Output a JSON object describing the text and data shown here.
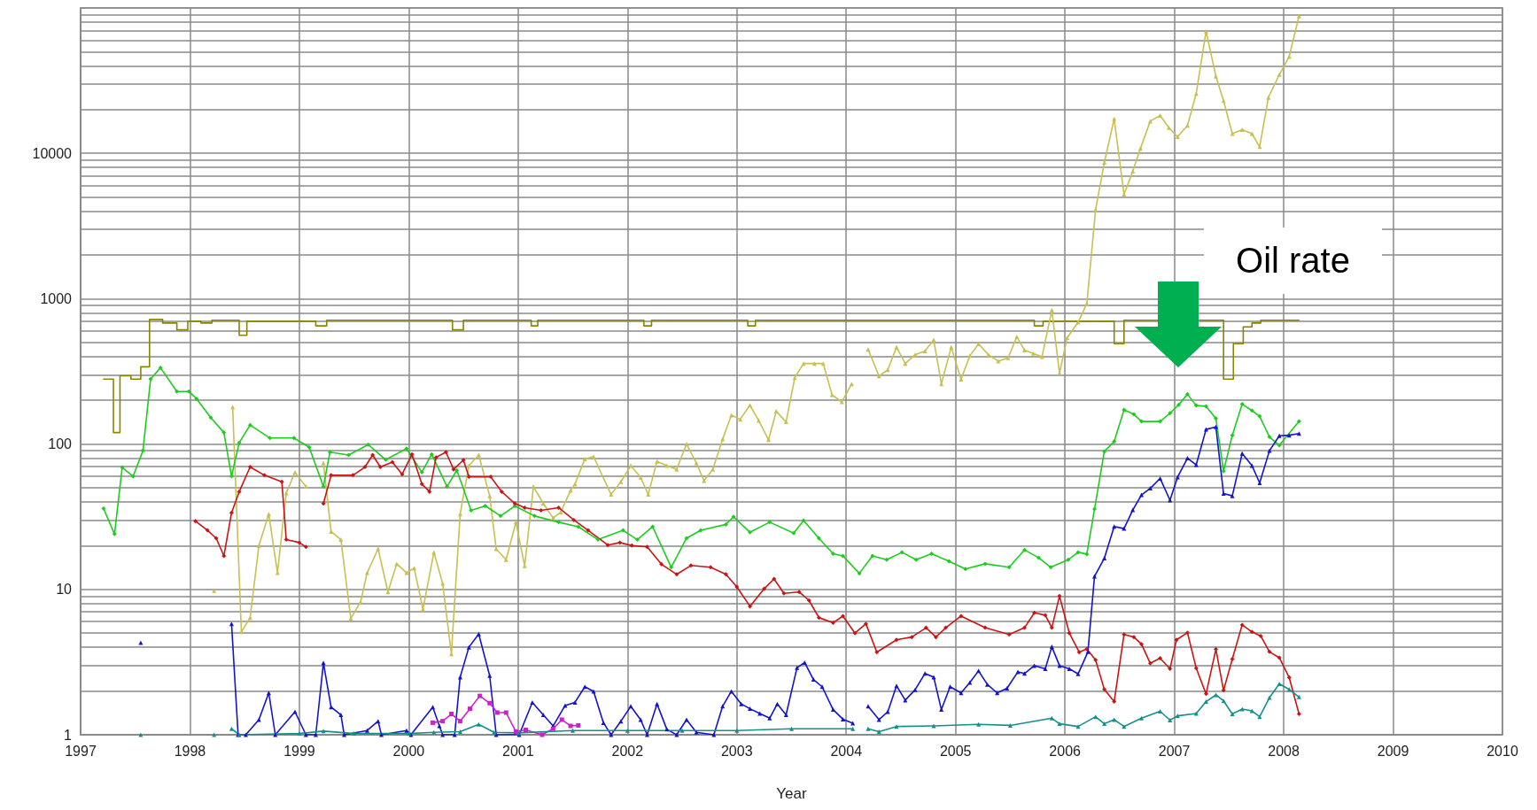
{
  "chart_data": {
    "type": "line",
    "xlabel": "Year",
    "xlim": [
      1997,
      2010
    ],
    "xticks": [
      1997,
      1998,
      1999,
      2000,
      2001,
      2002,
      2003,
      2004,
      2005,
      2006,
      2007,
      2008,
      2009,
      2010
    ],
    "ylim": [
      1,
      100000
    ],
    "log": "y",
    "grid": true,
    "yticks": [
      1,
      {
        "value": 2,
        "label": null
      },
      {
        "value": 3,
        "label": null
      },
      {
        "value": 4,
        "label": null
      },
      {
        "value": 5,
        "label": null
      },
      {
        "value": 6,
        "label": null
      },
      {
        "value": 7,
        "label": null
      },
      {
        "value": 8,
        "label": null
      },
      {
        "value": 9,
        "label": null
      },
      10,
      {
        "value": 20,
        "label": null
      },
      {
        "value": 30,
        "label": null
      },
      {
        "value": 40,
        "label": null
      },
      {
        "value": 50,
        "label": null
      },
      {
        "value": 60,
        "label": null
      },
      {
        "value": 70,
        "label": null
      },
      {
        "value": 80,
        "label": null
      },
      {
        "value": 90,
        "label": null
      },
      100,
      {
        "value": 200,
        "label": null
      },
      {
        "value": 300,
        "label": null
      },
      {
        "value": 400,
        "label": null
      },
      {
        "value": 500,
        "label": null
      },
      {
        "value": 600,
        "label": null
      },
      {
        "value": 700,
        "label": null
      },
      {
        "value": 800,
        "label": null
      },
      {
        "value": 900,
        "label": null
      },
      1000,
      {
        "value": 2000,
        "label": null
      },
      {
        "value": 3000,
        "label": null
      },
      {
        "value": 4000,
        "label": null
      },
      {
        "value": 5000,
        "label": null
      },
      {
        "value": 6000,
        "label": null
      },
      {
        "value": 7000,
        "label": null
      },
      {
        "value": 8000,
        "label": null
      },
      {
        "value": 9000,
        "label": null
      },
      10000,
      {
        "value": 20000,
        "label": null
      },
      {
        "value": 30000,
        "label": null
      },
      {
        "value": 40000,
        "label": null
      },
      {
        "value": 50000,
        "label": null
      },
      {
        "value": 60000,
        "label": null
      },
      {
        "value": 70000,
        "label": null
      },
      {
        "value": 80000,
        "label": null
      },
      {
        "value": 90000,
        "label": null
      },
      {
        "value": 100000,
        "label": null
      }
    ],
    "annotations": [
      "Oil rate"
    ],
    "series": [
      {
        "type": "step",
        "color": "#8c8400",
        "marker": "none",
        "x": [
          1997.21,
          1997.3,
          1997.36,
          1997.46,
          1997.55,
          1997.63,
          1997.75,
          1997.88,
          1997.98,
          1998.1,
          1998.2,
          1998.45,
          1998.52,
          1999.15,
          1999.25,
          2000.4,
          2000.5,
          2001.12,
          2001.18,
          2002.15,
          2002.22,
          2003.1,
          2003.17,
          2005.72,
          2005.8,
          2006.45,
          2006.54,
          2007.45,
          2007.54,
          2007.63,
          2007.71,
          2007.79,
          2008.14
        ],
        "values": [
          280,
          120,
          295,
          280,
          340,
          720,
          680,
          610,
          700,
          680,
          710,
          560,
          700,
          650,
          710,
          610,
          710,
          650,
          710,
          650,
          710,
          650,
          710,
          650,
          700,
          490,
          710,
          280,
          490,
          640,
          680,
          710,
          710
        ]
      },
      {
        "color": "#c8c050",
        "marker": "triangle",
        "x": [
          1998.22,
          1998.3,
          1998.39,
          1998.47,
          1998.55,
          1998.63,
          1998.72,
          1998.8,
          1998.88,
          1998.96,
          1999.06,
          1999.14,
          1999.22,
          1999.29,
          1999.38,
          1999.47,
          1999.56,
          1999.62,
          1999.72,
          1999.81,
          1999.89,
          1999.98,
          2000.05,
          2000.13,
          2000.23,
          2000.31,
          2000.39,
          2000.47,
          2000.55,
          2000.64,
          2000.74,
          2000.8,
          2000.89,
          2000.98,
          2001.06,
          2001.14,
          2001.23,
          2001.32,
          2001.39,
          2001.48,
          2001.52,
          2001.61,
          2001.69,
          2001.85,
          2001.94,
          2002.03,
          2002.12,
          2002.19,
          2002.27,
          2002.36,
          2002.45,
          2002.54,
          2002.63,
          2002.7,
          2002.78,
          2002.87,
          2002.95,
          2003.03,
          2003.12,
          2003.2,
          2003.29,
          2003.36,
          2003.45,
          2003.53,
          2003.61,
          2003.71,
          2003.79,
          2003.87,
          2003.96,
          2004.05,
          2004.12,
          2004.2,
          2004.3,
          2004.38,
          2004.46,
          2004.54,
          2004.63,
          2004.72,
          2004.8,
          2004.87,
          2004.96,
          2005.05,
          2005.13,
          2005.21,
          2005.3,
          2005.39,
          2005.48,
          2005.56,
          2005.63,
          2005.71,
          2005.79,
          2005.88,
          2005.95,
          2006.02,
          2006.12,
          2006.2,
          2006.28,
          2006.36,
          2006.45,
          2006.54,
          2006.62,
          2006.69,
          2006.78,
          2006.87,
          2006.95,
          2007.03,
          2007.12,
          2007.2,
          2007.29,
          2007.38,
          2007.45,
          2007.53,
          2007.62,
          2007.71,
          2007.78,
          2007.86,
          2007.96,
          2008.05,
          2008.14
        ],
        "values": [
          9.8,
          null,
          180,
          5.1,
          6.4,
          20,
          33,
          13,
          46,
          64,
          51,
          null,
          74,
          25,
          22,
          6.3,
          8.2,
          13,
          19,
          9.6,
          15,
          13,
          14,
          7.3,
          18,
          11,
          3.6,
          33,
          71,
          84,
          44,
          19,
          16,
          29,
          14.5,
          51,
          39,
          31,
          34,
          48,
          53,
          79,
          82,
          45,
          55,
          71,
          59,
          45,
          76,
          71,
          67,
          100,
          74,
          56,
          67,
          108,
          158,
          148,
          185,
          145,
          107,
          168,
          142,
          286,
          358,
          358,
          358,
          218,
          195,
          259,
          null,
          448,
          294,
          324,
          464,
          358,
          412,
          437,
          520,
          259,
          464,
          279,
          405,
          488,
          412,
          372,
          392,
          547,
          442,
          420,
          398,
          834,
          307,
          539,
          688,
          925,
          4090,
          8650,
          17260,
          5220,
          7510,
          10800,
          16640,
          18200,
          15000,
          13000,
          15560,
          25760,
          69200,
          33900,
          23000,
          13650,
          14550,
          13650,
          11090,
          24200,
          34800,
          46300,
          87900
        ]
      },
      {
        "color": "#1ecc1e",
        "marker": "diamond",
        "x": [
          1997.21,
          1997.31,
          1997.38,
          1997.48,
          1997.57,
          1997.64,
          1997.73,
          1997.88,
          1997.99,
          1998.06,
          1998.19,
          1998.31,
          1998.38,
          1998.45,
          1998.55,
          1998.73,
          1998.95,
          1999.09,
          1999.22,
          1999.28,
          1999.45,
          1999.63,
          1999.79,
          1999.98,
          2000.12,
          2000.21,
          2000.35,
          2000.44,
          2000.57,
          2000.7,
          2000.84,
          2000.97,
          2001.15,
          2001.37,
          2001.55,
          2001.73,
          2001.96,
          2002.09,
          2002.23,
          2002.4,
          2002.54,
          2002.67,
          2002.9,
          2002.97,
          2003.12,
          2003.3,
          2003.52,
          2003.61,
          2003.75,
          2003.88,
          2003.97,
          2004.12,
          2004.24,
          2004.37,
          2004.51,
          2004.64,
          2004.78,
          2004.94,
          2005.09,
          2005.27,
          2005.49,
          2005.63,
          2005.76,
          2005.87,
          2006.03,
          2006.12,
          2006.2,
          2006.27,
          2006.36,
          2006.45,
          2006.54,
          2006.63,
          2006.7,
          2006.87,
          2006.96,
          2007.04,
          2007.12,
          2007.2,
          2007.29,
          2007.38,
          2007.45,
          2007.53,
          2007.62,
          2007.71,
          2007.78,
          2007.87,
          2007.96,
          2008.14
        ],
        "values": [
          36,
          24,
          69,
          60,
          90,
          280,
          335,
          230,
          230,
          205,
          152,
          120,
          60,
          102,
          135,
          110,
          110,
          95,
          51,
          88,
          84,
          99,
          78,
          93,
          64,
          85,
          51,
          66,
          35,
          37.5,
          32,
          37.5,
          32,
          29,
          27,
          22,
          25.5,
          22,
          27,
          14.2,
          22.5,
          25.5,
          28,
          31.6,
          24.7,
          29,
          24.4,
          29.8,
          22.5,
          17.6,
          17,
          12.9,
          17,
          16,
          18,
          16,
          17.6,
          15.6,
          13.8,
          15,
          14.2,
          18.7,
          16.5,
          14.2,
          16,
          18,
          17.5,
          35.7,
          89,
          104,
          172,
          160,
          143,
          143,
          163,
          186,
          220,
          184,
          182,
          150,
          65,
          115,
          188,
          170,
          155,
          112,
          98,
          143
        ]
      },
      {
        "color": "#cc1414",
        "marker": "diamond",
        "x": [
          1998.05,
          1998.16,
          1998.24,
          1998.31,
          1998.38,
          1998.45,
          1998.55,
          1998.68,
          1998.84,
          1998.88,
          1999.0,
          1999.06,
          1999.14,
          1999.22,
          1999.29,
          1999.49,
          1999.6,
          1999.67,
          1999.74,
          1999.85,
          1999.94,
          2000.03,
          2000.12,
          2000.19,
          2000.25,
          2000.34,
          2000.41,
          2000.5,
          2000.55,
          2000.75,
          2000.85,
          2000.97,
          2001.06,
          2001.21,
          2001.37,
          2001.51,
          2001.64,
          2001.82,
          2001.93,
          2002.04,
          2002.18,
          2002.31,
          2002.45,
          2002.58,
          2002.76,
          2002.9,
          2003.0,
          2003.12,
          2003.25,
          2003.34,
          2003.43,
          2003.57,
          2003.66,
          2003.75,
          2003.88,
          2003.97,
          2004.08,
          2004.18,
          2004.28,
          2004.46,
          2004.6,
          2004.73,
          2004.82,
          2004.91,
          2005.05,
          2005.27,
          2005.49,
          2005.63,
          2005.72,
          2005.82,
          2005.88,
          2005.95,
          2006.04,
          2006.13,
          2006.2,
          2006.28,
          2006.36,
          2006.45,
          2006.54,
          2006.63,
          2006.7,
          2006.78,
          2006.87,
          2006.96,
          2007.02,
          2007.12,
          2007.2,
          2007.29,
          2007.38,
          2007.45,
          2007.53,
          2007.62,
          2007.71,
          2007.79,
          2007.87,
          2007.96,
          2008.05,
          2008.14
        ],
        "values": [
          29.5,
          25.5,
          22.5,
          17,
          33.7,
          47,
          69.5,
          61,
          55,
          22,
          21,
          19.6,
          null,
          39,
          61,
          61,
          69.5,
          84,
          69.5,
          75,
          62,
          85,
          53,
          47,
          81,
          88,
          67,
          77.5,
          59.5,
          59.5,
          47,
          39,
          36.5,
          35,
          36.5,
          30,
          25.5,
          20.2,
          21,
          20,
          19.6,
          14.9,
          12.7,
          14.6,
          14.2,
          12.7,
          10.4,
          7.65,
          10.1,
          11.8,
          9.4,
          9.6,
          8.4,
          6.4,
          5.9,
          6.55,
          5.0,
          5.8,
          3.7,
          4.5,
          4.7,
          5.45,
          4.7,
          5.45,
          6.55,
          5.45,
          4.9,
          5.45,
          6.9,
          6.65,
          5.45,
          9.0,
          5.0,
          3.7,
          3.9,
          3.27,
          2.05,
          1.69,
          4.9,
          4.7,
          4.2,
          3.1,
          3.36,
          2.84,
          4.5,
          5.04,
          2.87,
          1.91,
          3.88,
          2.02,
          3.32,
          5.7,
          5.1,
          4.78,
          3.72,
          3.39,
          2.48,
          1.39
        ]
      },
      {
        "color": "#1414cc",
        "marker": "triangle",
        "x": [
          1997.55,
          1997.9,
          1998.38,
          1998.44,
          1998.51,
          1998.63,
          1998.72,
          1998.78,
          1998.96,
          1999.06,
          1999.15,
          1999.22,
          1999.29,
          1999.38,
          1999.41,
          1999.62,
          1999.72,
          1999.75,
          1999.98,
          2000.02,
          2000.22,
          2000.28,
          2000.31,
          2000.42,
          2000.47,
          2000.55,
          2000.64,
          2000.74,
          2000.8,
          2001.01,
          2001.13,
          2001.23,
          2001.32,
          2001.43,
          2001.52,
          2001.61,
          2001.69,
          2001.78,
          2001.85,
          2001.94,
          2002.03,
          2002.12,
          2002.18,
          2002.27,
          2002.36,
          2002.45,
          2002.54,
          2002.63,
          2002.79,
          2002.87,
          2002.95,
          2003.04,
          2003.12,
          2003.21,
          2003.3,
          2003.37,
          2003.45,
          2003.55,
          2003.62,
          2003.7,
          2003.78,
          2003.88,
          2003.97,
          2004.06,
          2004.13,
          2004.2,
          2004.3,
          2004.38,
          2004.46,
          2004.54,
          2004.63,
          2004.72,
          2004.8,
          2004.87,
          2004.95,
          2005.05,
          2005.13,
          2005.21,
          2005.29,
          2005.38,
          2005.47,
          2005.57,
          2005.63,
          2005.72,
          2005.82,
          2005.88,
          2005.95,
          2006.04,
          2006.12,
          2006.21,
          2006.27,
          2006.36,
          2006.45,
          2006.54,
          2006.62,
          2006.7,
          2006.78,
          2006.87,
          2006.96,
          2007.03,
          2007.12,
          2007.2,
          2007.29,
          2007.38,
          2007.45,
          2007.53,
          2007.62,
          2007.71,
          2007.78,
          2007.87,
          2007.96,
          2008.05,
          2008.14
        ],
        "values": [
          4.3,
          null,
          5.8,
          1,
          1,
          1.27,
          1.94,
          1,
          1.44,
          1,
          1,
          3.12,
          1.55,
          1.37,
          1,
          1.07,
          1.24,
          1,
          1.07,
          1,
          1.55,
          1.15,
          1,
          1,
          2.49,
          4.0,
          4.93,
          2.55,
          1,
          1,
          1.67,
          1.37,
          1.15,
          1.59,
          1.67,
          2.14,
          1.99,
          1.21,
          1,
          1.24,
          1.57,
          1.27,
          1,
          1.63,
          1.09,
          1,
          1.27,
          1.04,
          1,
          1.57,
          1.99,
          1.63,
          1.51,
          1.4,
          1.3,
          1.63,
          1.37,
          2.89,
          3.14,
          2.4,
          2.14,
          1.49,
          1.28,
          1.2,
          null,
          1.57,
          1.27,
          1.44,
          2.17,
          1.73,
          2.04,
          2.64,
          2.49,
          1.49,
          2.14,
          1.94,
          2.29,
          2.75,
          2.22,
          1.94,
          2.09,
          2.71,
          2.64,
          2.99,
          2.84,
          4.03,
          2.99,
          2.84,
          2.62,
          3.72,
          12.3,
          16.4,
          27.1,
          26.2,
          35.2,
          44.7,
          49.6,
          58,
          41.1,
          59.2,
          80,
          72,
          126,
          131,
          45.6,
          44,
          86,
          71,
          54,
          90,
          114,
          115,
          118
        ]
      },
      {
        "color": "#cc22cc",
        "marker": "square",
        "x": [
          2000.22,
          2000.31,
          2000.39,
          2000.47,
          2000.56,
          2000.65,
          2000.74,
          2000.81,
          2000.89,
          2000.98,
          2001.07,
          2001.22,
          2001.32,
          2001.4,
          2001.48,
          2001.55
        ],
        "values": [
          1.21,
          1.24,
          1.39,
          1.24,
          1.51,
          1.85,
          1.65,
          1.42,
          1.42,
          1.05,
          1.08,
          1.0,
          1.1,
          1.27,
          1.15,
          1.16
        ]
      },
      {
        "color": "#14908c",
        "marker": "triangle",
        "x": [
          1997.55,
          1997.9,
          1998.22,
          1998.3,
          1998.38,
          1998.45,
          1999.0,
          1999.22,
          1999.5,
          2000.0,
          2000.23,
          2000.47,
          2000.64,
          2000.78,
          2001.0,
          2001.5,
          2002.0,
          2002.5,
          2003.0,
          2003.5,
          2004.06,
          2004.13,
          2004.2,
          2004.3,
          2004.46,
          2004.8,
          2005.21,
          2005.5,
          2005.88,
          2005.95,
          2006.12,
          2006.28,
          2006.36,
          2006.45,
          2006.54,
          2006.7,
          2006.87,
          2006.96,
          2007.03,
          2007.2,
          2007.29,
          2007.38,
          2007.45,
          2007.53,
          2007.62,
          2007.71,
          2007.78,
          2007.87,
          2007.96,
          2008.05,
          2008.14
        ],
        "values": [
          1.0,
          null,
          1.0,
          null,
          1.1,
          1.0,
          1.02,
          1.06,
          1.02,
          1.02,
          1.04,
          1.05,
          1.18,
          1.04,
          1.03,
          1.07,
          1.07,
          1.07,
          1.07,
          1.1,
          1.1,
          null,
          1.1,
          1.05,
          1.14,
          1.15,
          1.18,
          1.16,
          1.3,
          1.19,
          1.14,
          1.33,
          1.19,
          1.27,
          1.14,
          1.3,
          1.45,
          1.26,
          1.35,
          1.4,
          1.69,
          1.88,
          1.71,
          1.39,
          1.5,
          1.46,
          1.33,
          1.8,
          2.24,
          2.05,
          1.82
        ]
      }
    ]
  }
}
